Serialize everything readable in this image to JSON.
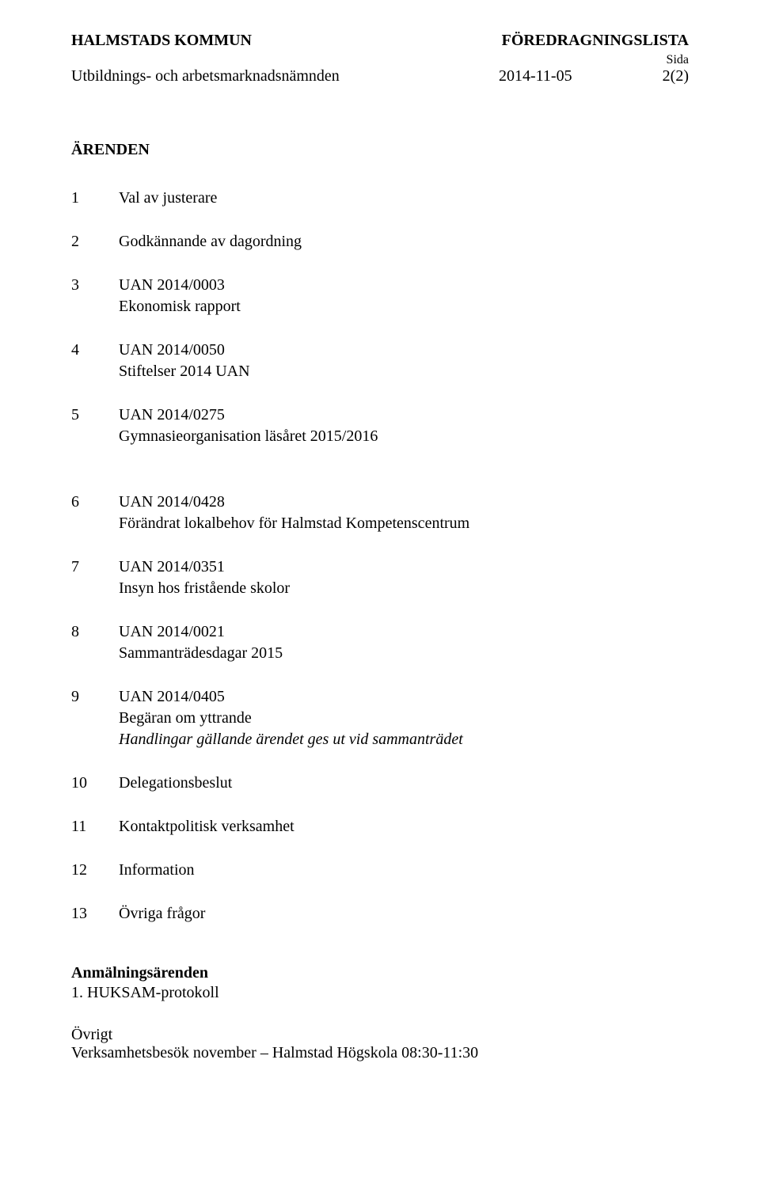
{
  "header": {
    "left": "HALMSTADS KOMMUN",
    "right": "FÖREDRAGNINGSLISTA",
    "sida_label": "Sida",
    "sub_left": "Utbildnings- och arbetsmarknadsnämnden",
    "sub_mid": "2014-11-05",
    "sub_right": "2(2)"
  },
  "section_title": "ÄRENDEN",
  "items": [
    {
      "num": "1",
      "lines": [
        "Val av justerare"
      ]
    },
    {
      "num": "2",
      "lines": [
        "Godkännande av dagordning"
      ]
    },
    {
      "num": "3",
      "lines": [
        "UAN 2014/0003",
        "Ekonomisk rapport"
      ]
    },
    {
      "num": "4",
      "lines": [
        "UAN 2014/0050",
        "Stiftelser 2014 UAN"
      ]
    },
    {
      "num": "5",
      "lines": [
        "UAN 2014/0275",
        "Gymnasieorganisation läsåret 2015/2016"
      ],
      "gap_after": true
    },
    {
      "num": "6",
      "lines": [
        "UAN 2014/0428",
        "Förändrat lokalbehov för Halmstad Kompetenscentrum"
      ]
    },
    {
      "num": "7",
      "lines": [
        "UAN 2014/0351",
        "Insyn hos fristående skolor"
      ]
    },
    {
      "num": "8",
      "lines": [
        "UAN 2014/0021",
        "Sammanträdesdagar 2015"
      ]
    },
    {
      "num": "9",
      "lines": [
        "UAN 2014/0405",
        "Begäran om yttrande"
      ],
      "italic_line": "Handlingar gällande ärendet ges ut vid sammanträdet"
    },
    {
      "num": "10",
      "lines": [
        "Delegationsbeslut"
      ]
    },
    {
      "num": "11",
      "lines": [
        "Kontaktpolitisk verksamhet"
      ]
    },
    {
      "num": "12",
      "lines": [
        "Information"
      ]
    },
    {
      "num": "13",
      "lines": [
        "Övriga frågor"
      ]
    }
  ],
  "anmal": {
    "title": "Anmälningsärenden",
    "line1": "1. HUKSAM-protokoll"
  },
  "ovrigt": {
    "title": "Övrigt",
    "line1": "Verksamhetsbesök november – Halmstad Högskola 08:30-11:30"
  }
}
